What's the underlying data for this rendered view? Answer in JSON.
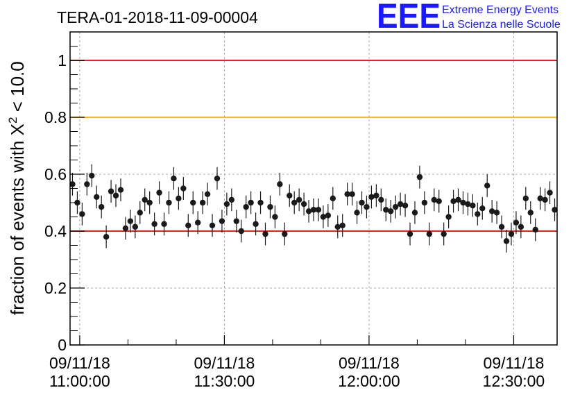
{
  "header": {
    "title": "TERA-01-2018-11-09-00004",
    "logo_text": "EEE",
    "logo_line1": "Extreme Energy Events",
    "logo_line2": "La Scienza nelle Scuole"
  },
  "chart_data": {
    "type": "scatter",
    "title": "TERA-01-2018-11-09-00004",
    "ylabel": "fraction of events with χ² < 10.0",
    "ylabel_main": "fraction of events with X",
    "ylabel_sup": "2",
    "ylabel_tail": " < 10.0",
    "xlabel": "",
    "x_unit": "minutes after 09/11/18 11:00:00",
    "xlim": [
      -2,
      99
    ],
    "ylim": [
      0,
      1.1
    ],
    "grid": true,
    "x_ticks": [
      {
        "x": 0,
        "date": "09/11/18",
        "time": "11:00:00"
      },
      {
        "x": 30,
        "date": "09/11/18",
        "time": "11:30:00"
      },
      {
        "x": 60,
        "date": "09/11/18",
        "time": "12:00:00"
      },
      {
        "x": 90,
        "date": "09/11/18",
        "time": "12:30:00"
      }
    ],
    "y_ticks": [
      {
        "v": 0,
        "label": "0"
      },
      {
        "v": 0.2,
        "label": "0.2"
      },
      {
        "v": 0.4,
        "label": "0.4"
      },
      {
        "v": 0.6,
        "label": "0.6"
      },
      {
        "v": 0.8,
        "label": "0.8"
      },
      {
        "v": 1.0,
        "label": "1"
      }
    ],
    "reference_lines": [
      {
        "y": 1.0,
        "color": "#e8201c"
      },
      {
        "y": 0.8,
        "color": "#f5bf0a"
      },
      {
        "y": 0.4,
        "color": "#e8201c"
      }
    ],
    "series": [
      {
        "marker_color": "#1a1a1a",
        "error": 0.04,
        "x": [
          -1.5,
          -0.5,
          0.5,
          1.5,
          2.5,
          3.5,
          4.5,
          5.5,
          6.5,
          7.5,
          8.5,
          9.5,
          10.5,
          11.5,
          12.5,
          13.5,
          14.5,
          15.5,
          16.5,
          17.5,
          18.5,
          19.5,
          20.5,
          21.5,
          22.5,
          23.5,
          24.5,
          25.5,
          26.5,
          27.5,
          28.5,
          29.5,
          30.5,
          31.5,
          32.5,
          33.5,
          34.5,
          35.5,
          36.5,
          37.5,
          38.5,
          39.5,
          40.5,
          41.5,
          42.5,
          43.5,
          44.5,
          45.5,
          46.5,
          47.5,
          48.5,
          49.5,
          50.5,
          51.5,
          52.5,
          53.5,
          54.5,
          55.5,
          56.5,
          57.5,
          58.5,
          59.5,
          60.5,
          61.5,
          62.5,
          63.5,
          64.5,
          65.5,
          66.5,
          67.5,
          68.5,
          69.5,
          70.5,
          71.5,
          72.5,
          73.5,
          74.5,
          75.5,
          76.5,
          77.5,
          78.5,
          79.5,
          80.5,
          81.5,
          82.5,
          83.5,
          84.5,
          85.5,
          86.5,
          87.5,
          88.5,
          89.5,
          90.5,
          91.5,
          92.5,
          93.5,
          94.5,
          95.5,
          96.5,
          97.5,
          98.5
        ],
        "y": [
          0.565,
          0.5,
          0.46,
          0.565,
          0.595,
          0.52,
          0.485,
          0.38,
          0.54,
          0.525,
          0.545,
          0.41,
          0.435,
          0.415,
          0.465,
          0.51,
          0.5,
          0.425,
          0.535,
          0.425,
          0.5,
          0.585,
          0.515,
          0.55,
          0.42,
          0.5,
          0.43,
          0.5,
          0.53,
          0.42,
          0.585,
          0.435,
          0.495,
          0.51,
          0.435,
          0.4,
          0.485,
          0.5,
          0.425,
          0.5,
          0.39,
          0.485,
          0.45,
          0.565,
          0.39,
          0.525,
          0.5,
          0.51,
          0.495,
          0.47,
          0.475,
          0.475,
          0.45,
          0.455,
          0.515,
          0.415,
          0.42,
          0.53,
          0.53,
          0.465,
          0.5,
          0.485,
          0.52,
          0.525,
          0.51,
          0.475,
          0.47,
          0.485,
          0.495,
          0.49,
          0.39,
          0.465,
          0.59,
          0.5,
          0.39,
          0.51,
          0.505,
          0.39,
          0.45,
          0.505,
          0.51,
          0.5,
          0.495,
          0.49,
          0.46,
          0.48,
          0.56,
          0.47,
          0.465,
          0.415,
          0.365,
          0.39,
          0.43,
          0.415,
          0.515,
          0.465,
          0.405,
          0.515,
          0.51,
          0.535,
          0.475
        ]
      }
    ]
  }
}
